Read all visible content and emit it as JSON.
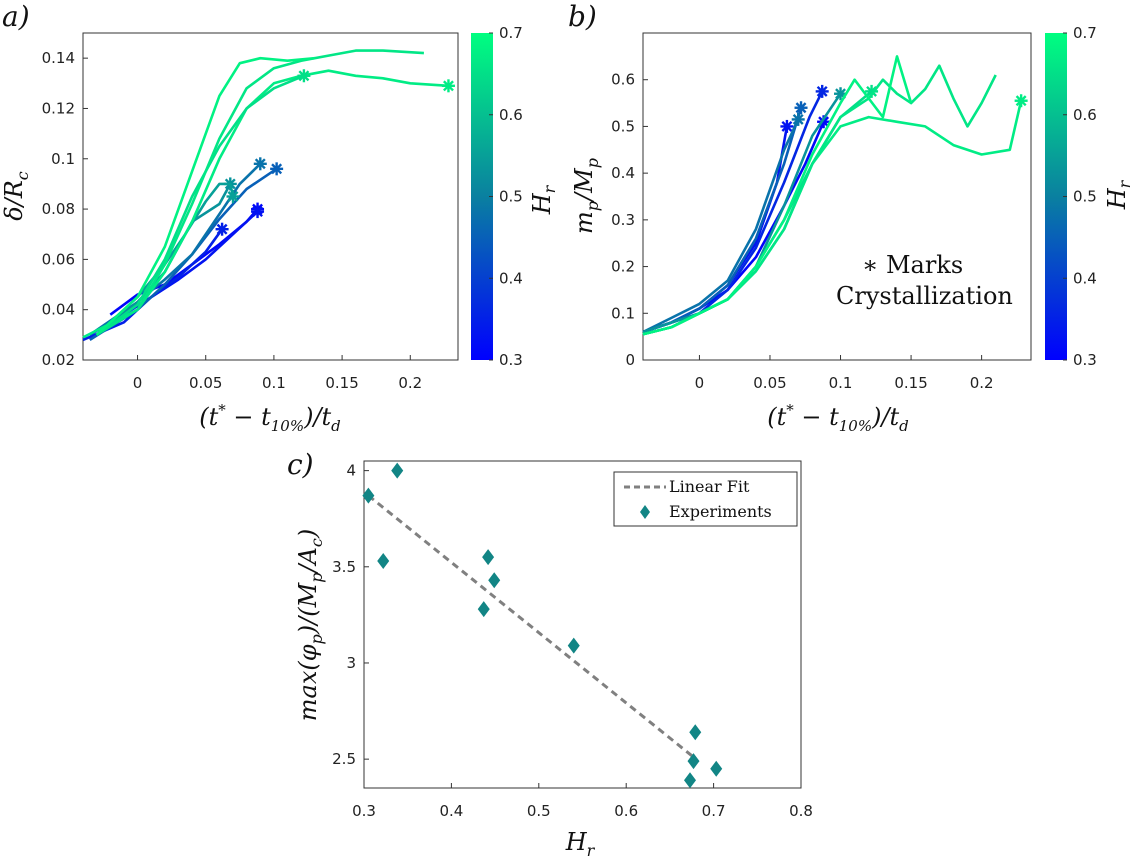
{
  "charts": [
    {
      "id": "a",
      "panel_label": "a)",
      "type": "line",
      "xlabel": "(t* − t10%)/td",
      "ylabel": "δ/Rc",
      "xlim": [
        -0.04,
        0.235
      ],
      "ylim": [
        0.02,
        0.15
      ],
      "xticks": [
        0,
        0.05,
        0.1,
        0.15,
        0.2
      ],
      "xtick_labels": [
        "0",
        "0.05",
        "0.1",
        "0.15",
        "0.2"
      ],
      "yticks": [
        0.02,
        0.04,
        0.06,
        0.08,
        0.1,
        0.12,
        0.14
      ],
      "ytick_labels": [
        "0.02",
        "0.04",
        "0.06",
        "0.08",
        "0.1",
        "0.12",
        "0.14"
      ],
      "colorbar": {
        "label": "Hr",
        "range": [
          0.3,
          0.7
        ],
        "ticks": [
          0.3,
          0.4,
          0.5,
          0.6,
          0.7
        ],
        "tick_labels": [
          "0.3",
          "0.4",
          "0.5",
          "0.6",
          "0.7"
        ]
      },
      "series": [
        {
          "Hr": 0.31,
          "x": [
            -0.02,
            0.0,
            0.02,
            0.04,
            0.06,
            0.08,
            0.088
          ],
          "y": [
            0.038,
            0.046,
            0.05,
            0.058,
            0.066,
            0.075,
            0.08
          ],
          "end_mark": true
        },
        {
          "Hr": 0.33,
          "x": [
            -0.035,
            -0.01,
            0.01,
            0.03,
            0.05,
            0.07,
            0.088
          ],
          "y": [
            0.03,
            0.038,
            0.045,
            0.052,
            0.06,
            0.07,
            0.079
          ],
          "end_mark": true
        },
        {
          "Hr": 0.35,
          "x": [
            -0.04,
            -0.01,
            0.01,
            0.03,
            0.05,
            0.062
          ],
          "y": [
            0.028,
            0.035,
            0.045,
            0.053,
            0.063,
            0.072
          ],
          "end_mark": true
        },
        {
          "Hr": 0.45,
          "x": [
            -0.035,
            0.0,
            0.02,
            0.04,
            0.06,
            0.08,
            0.102
          ],
          "y": [
            0.028,
            0.04,
            0.05,
            0.062,
            0.076,
            0.088,
            0.096
          ],
          "end_mark": true
        },
        {
          "Hr": 0.48,
          "x": [
            -0.035,
            0.0,
            0.02,
            0.04,
            0.06,
            0.075,
            0.09
          ],
          "y": [
            0.03,
            0.043,
            0.052,
            0.062,
            0.078,
            0.09,
            0.098
          ],
          "end_mark": true
        },
        {
          "Hr": 0.53,
          "x": [
            -0.03,
            0.0,
            0.02,
            0.04,
            0.06,
            0.068
          ],
          "y": [
            0.03,
            0.043,
            0.055,
            0.075,
            0.082,
            0.09
          ],
          "end_mark": true
        },
        {
          "Hr": 0.55,
          "x": [
            -0.03,
            0.0,
            0.02,
            0.035,
            0.05,
            0.06,
            0.068,
            0.07
          ],
          "y": [
            0.03,
            0.045,
            0.058,
            0.07,
            0.083,
            0.09,
            0.09,
            0.085
          ],
          "end_mark": true
        },
        {
          "Hr": 0.67,
          "x": [
            -0.04,
            0.0,
            0.02,
            0.04,
            0.06,
            0.08,
            0.1,
            0.12,
            0.14,
            0.16,
            0.18,
            0.2,
            0.228
          ],
          "y": [
            0.029,
            0.04,
            0.055,
            0.075,
            0.1,
            0.12,
            0.13,
            0.133,
            0.135,
            0.133,
            0.132,
            0.13,
            0.129
          ],
          "end_mark": true
        },
        {
          "Hr": 0.65,
          "x": [
            -0.03,
            0.0,
            0.02,
            0.04,
            0.06,
            0.08,
            0.1,
            0.122
          ],
          "y": [
            0.03,
            0.042,
            0.06,
            0.085,
            0.105,
            0.12,
            0.128,
            0.133
          ],
          "end_mark": true
        },
        {
          "Hr": 0.66,
          "x": [
            -0.03,
            0.0,
            0.02,
            0.04,
            0.06,
            0.08,
            0.1,
            0.12,
            0.14,
            0.16,
            0.18,
            0.21
          ],
          "y": [
            0.03,
            0.04,
            0.058,
            0.082,
            0.108,
            0.128,
            0.136,
            0.139,
            0.141,
            0.143,
            0.143,
            0.142
          ],
          "end_mark": false
        },
        {
          "Hr": 0.68,
          "x": [
            -0.03,
            0.0,
            0.02,
            0.04,
            0.06,
            0.075,
            0.09,
            0.11,
            0.13
          ],
          "y": [
            0.03,
            0.045,
            0.065,
            0.095,
            0.125,
            0.138,
            0.14,
            0.139,
            0.14
          ],
          "end_mark": false
        }
      ]
    },
    {
      "id": "b",
      "panel_label": "b)",
      "type": "line",
      "xlabel": "(t* − t10%)/td",
      "ylabel": "mp/Mp",
      "xlim": [
        -0.04,
        0.235
      ],
      "ylim": [
        0,
        0.7
      ],
      "xticks": [
        0,
        0.05,
        0.1,
        0.15,
        0.2
      ],
      "xtick_labels": [
        "0",
        "0.05",
        "0.1",
        "0.15",
        "0.2"
      ],
      "yticks": [
        0,
        0.1,
        0.2,
        0.3,
        0.4,
        0.5,
        0.6
      ],
      "ytick_labels": [
        "0",
        "0.1",
        "0.2",
        "0.3",
        "0.4",
        "0.5",
        "0.6"
      ],
      "annotation_line1": "∗ Marks",
      "annotation_line2": "Crystallization",
      "colorbar": {
        "label": "Hr",
        "range": [
          0.3,
          0.7
        ],
        "ticks": [
          0.3,
          0.4,
          0.5,
          0.6,
          0.7
        ],
        "tick_labels": [
          "0.3",
          "0.4",
          "0.5",
          "0.6",
          "0.7"
        ]
      },
      "series": [
        {
          "Hr": 0.31,
          "x": [
            -0.04,
            -0.02,
            0.0,
            0.02,
            0.04,
            0.06,
            0.075,
            0.088
          ],
          "y": [
            0.06,
            0.08,
            0.11,
            0.15,
            0.22,
            0.33,
            0.42,
            0.51
          ],
          "end_mark": true
        },
        {
          "Hr": 0.33,
          "x": [
            -0.04,
            -0.02,
            0.0,
            0.02,
            0.04,
            0.055,
            0.062
          ],
          "y": [
            0.06,
            0.08,
            0.11,
            0.16,
            0.25,
            0.38,
            0.5
          ],
          "end_mark": true
        },
        {
          "Hr": 0.36,
          "x": [
            -0.04,
            -0.02,
            0.0,
            0.02,
            0.04,
            0.06,
            0.078,
            0.087
          ],
          "y": [
            0.06,
            0.08,
            0.1,
            0.15,
            0.24,
            0.38,
            0.52,
            0.575
          ],
          "end_mark": true
        },
        {
          "Hr": 0.45,
          "x": [
            -0.04,
            -0.02,
            0.0,
            0.02,
            0.04,
            0.06,
            0.072
          ],
          "y": [
            0.06,
            0.08,
            0.11,
            0.16,
            0.26,
            0.42,
            0.54
          ],
          "end_mark": true
        },
        {
          "Hr": 0.48,
          "x": [
            -0.04,
            -0.02,
            0.0,
            0.02,
            0.04,
            0.06,
            0.07
          ],
          "y": [
            0.06,
            0.09,
            0.12,
            0.17,
            0.28,
            0.45,
            0.515
          ],
          "end_mark": true
        },
        {
          "Hr": 0.53,
          "x": [
            -0.04,
            -0.02,
            0.0,
            0.02,
            0.04,
            0.06,
            0.08,
            0.1
          ],
          "y": [
            0.06,
            0.08,
            0.1,
            0.13,
            0.2,
            0.33,
            0.48,
            0.57
          ],
          "end_mark": true
        },
        {
          "Hr": 0.67,
          "x": [
            -0.04,
            -0.02,
            0.0,
            0.02,
            0.04,
            0.06,
            0.08,
            0.1,
            0.12,
            0.14,
            0.16,
            0.18,
            0.2,
            0.22,
            0.228
          ],
          "y": [
            0.055,
            0.07,
            0.1,
            0.13,
            0.19,
            0.28,
            0.42,
            0.5,
            0.52,
            0.51,
            0.5,
            0.46,
            0.44,
            0.45,
            0.555
          ],
          "end_mark": true
        },
        {
          "Hr": 0.65,
          "x": [
            -0.04,
            -0.02,
            0.0,
            0.02,
            0.04,
            0.06,
            0.08,
            0.1,
            0.122
          ],
          "y": [
            0.055,
            0.07,
            0.1,
            0.13,
            0.2,
            0.3,
            0.42,
            0.52,
            0.575
          ],
          "end_mark": true
        },
        {
          "Hr": 0.66,
          "x": [
            -0.04,
            -0.02,
            0.0,
            0.02,
            0.04,
            0.06,
            0.08,
            0.1,
            0.12,
            0.13,
            0.14,
            0.15,
            0.16,
            0.17,
            0.18,
            0.19,
            0.2,
            0.21
          ],
          "y": [
            0.055,
            0.07,
            0.1,
            0.13,
            0.19,
            0.28,
            0.42,
            0.52,
            0.56,
            0.6,
            0.57,
            0.55,
            0.58,
            0.63,
            0.56,
            0.5,
            0.55,
            0.61
          ],
          "end_mark": false
        },
        {
          "Hr": 0.68,
          "x": [
            -0.04,
            -0.02,
            0.0,
            0.02,
            0.04,
            0.06,
            0.08,
            0.1,
            0.11,
            0.12,
            0.13,
            0.14,
            0.15
          ],
          "y": [
            0.055,
            0.07,
            0.1,
            0.13,
            0.2,
            0.3,
            0.44,
            0.55,
            0.6,
            0.56,
            0.52,
            0.65,
            0.55
          ],
          "end_mark": false
        }
      ]
    },
    {
      "id": "c",
      "panel_label": "c)",
      "type": "scatter",
      "xlabel": "Hr",
      "ylabel": "max(φp)/(Mp/Ac)",
      "xlim": [
        0.3,
        0.8
      ],
      "ylim": [
        2.35,
        4.05
      ],
      "xticks": [
        0.3,
        0.4,
        0.5,
        0.6,
        0.7,
        0.8
      ],
      "xtick_labels": [
        "0.3",
        "0.4",
        "0.5",
        "0.6",
        "0.7",
        "0.8"
      ],
      "yticks": [
        2.5,
        3,
        3.5,
        4
      ],
      "ytick_labels": [
        "2.5",
        "3",
        "3.5",
        "4"
      ],
      "legend_fit": "Linear Fit",
      "legend_points": "Experiments",
      "marker_color": "#128585",
      "fit_color": "#808080",
      "fit_line": {
        "x": [
          0.305,
          0.68
        ],
        "y": [
          3.87,
          2.5
        ]
      },
      "points": {
        "x": [
          0.305,
          0.338,
          0.322,
          0.442,
          0.449,
          0.437,
          0.54,
          0.679,
          0.677,
          0.703,
          0.673
        ],
        "y": [
          3.87,
          4.0,
          3.53,
          3.55,
          3.43,
          3.28,
          3.09,
          2.64,
          2.49,
          2.45,
          2.39
        ]
      }
    }
  ]
}
